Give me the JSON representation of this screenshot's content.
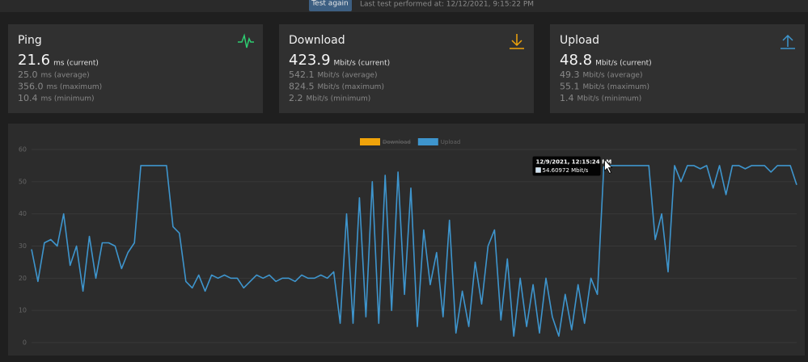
{
  "header": {
    "button": "Test again",
    "last_test": "Last test performed at: 12/12/2021, 9:15:22 PM"
  },
  "cards": [
    {
      "title": "Ping",
      "current": {
        "value": "21.6",
        "unit": "ms (current)"
      },
      "stats": [
        {
          "value": "25.0",
          "unit": "ms (average)"
        },
        {
          "value": "356.0",
          "unit": "ms (maximum)"
        },
        {
          "value": "10.4",
          "unit": "ms (minimum)"
        }
      ]
    },
    {
      "title": "Download",
      "current": {
        "value": "423.9",
        "unit": "Mbit/s (current)"
      },
      "stats": [
        {
          "value": "542.1",
          "unit": "Mbit/s (average)"
        },
        {
          "value": "824.5",
          "unit": "Mbit/s (maximum)"
        },
        {
          "value": "2.2",
          "unit": "Mbit/s (minimum)"
        }
      ]
    },
    {
      "title": "Upload",
      "current": {
        "value": "48.8",
        "unit": "Mbit/s (current)"
      },
      "stats": [
        {
          "value": "49.3",
          "unit": "Mbit/s (average)"
        },
        {
          "value": "55.1",
          "unit": "Mbit/s (maximum)"
        },
        {
          "value": "1.4",
          "unit": "Mbit/s (minimum)"
        }
      ]
    }
  ],
  "chart_data": {
    "type": "line",
    "ylim": [
      0,
      60
    ],
    "yticks": [
      0,
      10,
      20,
      30,
      40,
      50,
      60
    ],
    "grid": true,
    "legend": "top",
    "series": [
      {
        "name": "Download",
        "color": "#f0a30a",
        "hidden": true,
        "values": [
          null,
          null,
          null,
          null,
          null,
          null,
          null,
          null,
          null,
          null,
          null,
          null,
          null,
          null,
          null,
          null,
          null,
          null,
          null,
          null,
          null,
          null,
          null,
          null,
          null,
          null,
          null,
          null,
          null,
          null,
          null,
          null,
          null,
          null,
          null,
          null,
          null,
          null,
          null,
          null,
          null,
          null,
          null,
          null,
          null,
          null,
          null,
          null,
          null,
          null,
          null,
          null,
          null,
          null,
          null,
          null,
          null,
          null,
          null,
          null,
          null,
          null,
          null,
          null,
          null,
          null,
          null,
          null,
          null,
          null,
          null,
          null,
          null,
          null,
          null,
          null,
          null,
          null,
          null,
          null,
          null,
          null,
          null,
          null,
          null,
          null,
          null,
          null,
          null,
          null,
          null,
          null,
          null,
          null,
          null,
          null,
          null,
          null,
          null,
          null,
          null,
          null,
          null,
          null,
          null,
          null,
          null,
          null,
          null,
          null,
          null,
          null,
          null,
          null,
          null,
          null,
          null,
          null,
          null,
          null
        ]
      },
      {
        "name": "Upload",
        "color": "#3e95cd",
        "values": [
          29,
          19,
          31,
          32,
          30,
          40,
          24,
          30,
          16,
          33,
          20,
          31,
          31,
          30,
          23,
          28,
          31,
          55,
          55,
          55,
          55,
          55,
          36,
          34,
          19,
          17,
          21,
          16,
          21,
          20,
          21,
          20,
          20,
          17,
          19,
          21,
          20,
          21,
          19,
          20,
          20,
          19,
          21,
          20,
          20,
          21,
          20,
          22,
          6,
          40,
          6,
          45,
          8,
          50,
          6,
          52,
          10,
          53,
          15,
          48,
          5,
          35,
          18,
          28,
          8,
          38,
          3,
          16,
          5,
          25,
          12,
          30,
          35,
          7,
          26,
          2,
          20,
          5,
          18,
          3,
          20,
          8,
          2,
          15,
          4,
          18,
          6,
          20,
          15,
          54.60972,
          55,
          55,
          55,
          55,
          55,
          55,
          55,
          32,
          40,
          22,
          55,
          50,
          55,
          55,
          54,
          55,
          48,
          55,
          46,
          55,
          55,
          54,
          55,
          55,
          55,
          53,
          55,
          55,
          55,
          49
        ]
      }
    ],
    "tooltip": {
      "index": 89,
      "title": "12/9/2021, 12:15:24 PM",
      "text": "54.60972 Mbit/s"
    }
  }
}
